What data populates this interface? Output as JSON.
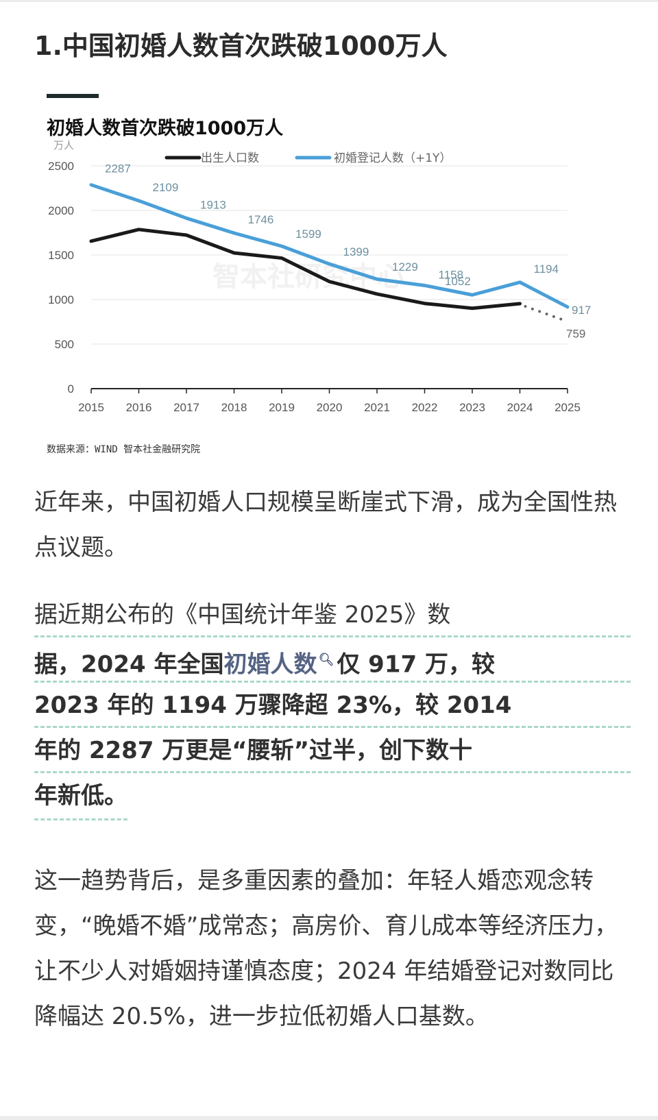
{
  "page": {
    "title": "1.中国初婚人数首次跌破1000万人"
  },
  "chart": {
    "title": "初婚人数首次跌破1000万人",
    "unit": "万人",
    "source": "数据来源：WIND 智本社金融研究院",
    "watermark": "智本社研究中心",
    "legend": [
      {
        "label": "出生人口数",
        "color": "#1a1a1a"
      },
      {
        "label": "初婚登记人数（+1Y）",
        "color": "#4a9fd8"
      }
    ],
    "y_ticks": [
      "0",
      "500",
      "1000",
      "1500",
      "2000",
      "2500"
    ],
    "x_ticks": [
      "2015",
      "2016",
      "2017",
      "2018",
      "2019",
      "2020",
      "2021",
      "2022",
      "2023",
      "2024",
      "2025"
    ]
  },
  "chart_data": {
    "type": "line",
    "title": "初婚人数首次跌破1000万人",
    "xlabel": "",
    "ylabel": "万人",
    "ylim": [
      0,
      2500
    ],
    "grid": true,
    "legend_position": "top",
    "x": [
      2015,
      2016,
      2017,
      2018,
      2019,
      2020,
      2021,
      2022,
      2023,
      2024,
      2025
    ],
    "series": [
      {
        "name": "出生人口数",
        "color": "#1a1a1a",
        "values": [
          1655,
          1786,
          1723,
          1523,
          1465,
          1202,
          1062,
          956,
          902,
          954,
          null
        ],
        "projection": {
          "from": 2024,
          "to": 2025,
          "value": 759,
          "style": "dotted",
          "label": "759"
        }
      },
      {
        "name": "初婚登记人数（+1Y）",
        "color": "#4a9fd8",
        "values": [
          2287,
          2109,
          1913,
          1746,
          1599,
          1399,
          1229,
          1158,
          1052,
          1194,
          917
        ],
        "labels": [
          "2287",
          "2109",
          "1913",
          "1746",
          "1599",
          "1399",
          "1229",
          "1158",
          "1052",
          "1194",
          "917"
        ]
      }
    ],
    "source": "数据来源：WIND 智本社金融研究院"
  },
  "article": {
    "p1": "近年来，中国初婚人口规模呈断崖式下滑，成为全国性热点议题。",
    "p2_line1": "据近期公布的《中国统计年鉴 2025》数",
    "p2_line2_a": "据，2024 年全国",
    "p2_keyword": "初婚人数",
    "p2_search_icon": "🔍",
    "p2_line2_b": "仅 917 万，较",
    "p2_line3": "2023 年的 1194 万骤降超 23%，较 2014",
    "p2_line4": "年的 2287 万更是“腰斩”过半，创下数十",
    "p2_line5": "年新低。",
    "p3": "这一趋势背后，是多重因素的叠加：年轻人婚恋观念转变，“晚婚不婚”成常态；高房价、育儿成本等经济压力，让不少人对婚姻持谨慎态度；2024 年结婚登记对数同比降幅达 20.5%，进一步拉低初婚人口基数。"
  }
}
